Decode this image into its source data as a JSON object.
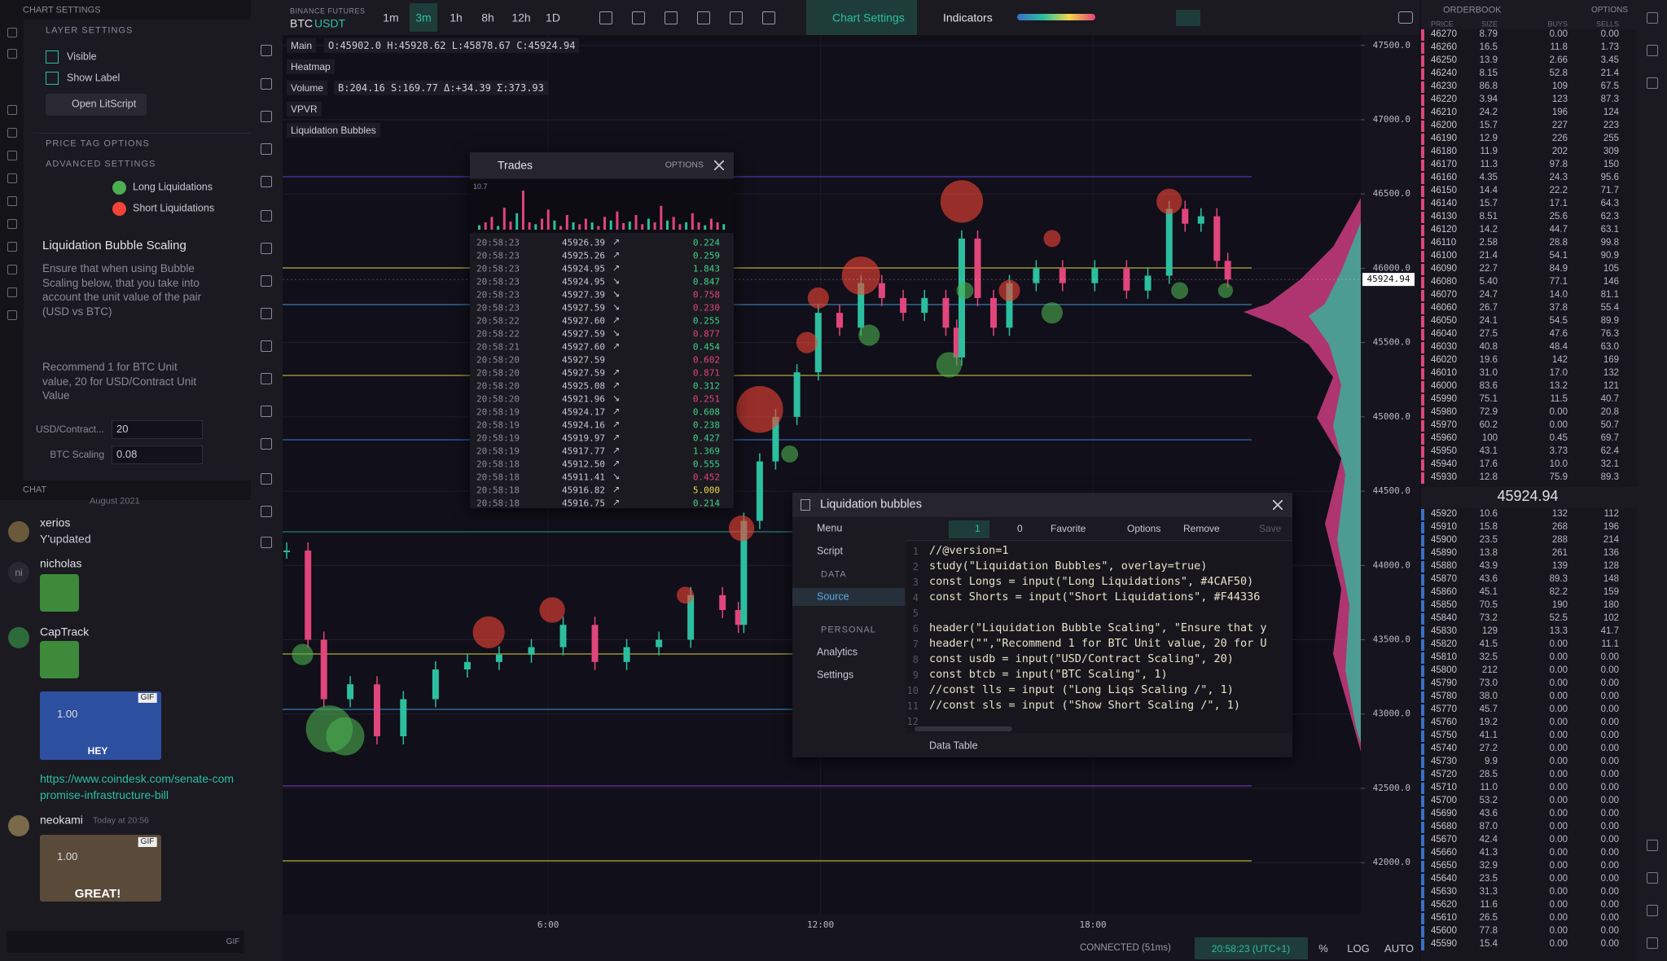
{
  "sidebar": {
    "header": "CHART SETTINGS",
    "layer_settings": "LAYER SETTINGS",
    "visible": "Visible",
    "show_label": "Show Label",
    "open_script": "Open LitScript",
    "price_tag": "PRICE TAG OPTIONS",
    "advanced": "ADVANCED SETTINGS",
    "long": "Long Liquidations",
    "short": "Short Liquidations",
    "scaling_title": "Liquidation Bubble Scaling",
    "scaling_desc": "Ensure that when using Bubble Scaling below, that you take into account the unit value of the pair (USD vs BTC)",
    "recommend": "Recommend 1 for BTC Unit value, 20 for USD/Contract Unit Value",
    "usd_label": "USD/Contract...",
    "usd_value": "20",
    "btc_label": "BTC Scaling",
    "btc_value": "0.08"
  },
  "chat": {
    "header": "CHAT",
    "date": "August 2021",
    "messages": [
      {
        "user": "xerios",
        "text": "Y'updated"
      },
      {
        "user": "nicholas",
        "avatar": "ni"
      },
      {
        "user": "CapTrack",
        "gif_badge": "GIF",
        "gif_counter": "1.00",
        "gif_caption": "HEY",
        "link": "https://www.coindesk.com/senate-compromise-infrastructure-bill"
      },
      {
        "user": "neokami",
        "time": "Today at 20:56",
        "gif_badge": "GIF",
        "gif_counter": "1.00",
        "gif_caption": "GREAT!"
      }
    ],
    "input_gif": "GIF"
  },
  "toolbar": {
    "exchange": "BINANCE FUTURES",
    "symbol_base": "BTC",
    "symbol_quote": "USDT",
    "timeframes": [
      "1m",
      "3m",
      "1h",
      "8h",
      "12h",
      "1D"
    ],
    "chart_settings": "Chart Settings",
    "indicators": "Indicators"
  },
  "legend": {
    "main": "Main",
    "ohlc": "O:45902.0 H:45928.62 L:45878.67 C:45924.94",
    "heatmap": "Heatmap",
    "volume": "Volume",
    "vol_stats": "B:204.16 S:169.77 Δ:+34.39 Σ:373.93",
    "vpvr": "VPVR",
    "bubbles": "Liquidation Bubbles"
  },
  "chart": {
    "xlim": [
      0.15,
      23.9
    ],
    "ylim": [
      41650,
      47570
    ],
    "yticks": [
      {
        "value": 42000,
        "label": "42000.0"
      },
      {
        "value": 42500,
        "label": "42500.0"
      },
      {
        "value": 43000,
        "label": "43000.0"
      },
      {
        "value": 43500,
        "label": "43500.0"
      },
      {
        "value": 44000,
        "label": "44000.0"
      },
      {
        "value": 44500,
        "label": "44500.0"
      },
      {
        "value": 45000,
        "label": "45000.0"
      },
      {
        "value": 45500,
        "label": "45500.0"
      },
      {
        "value": 46000,
        "label": "46000.0"
      },
      {
        "value": 46500,
        "label": "46500.0"
      },
      {
        "value": 47000,
        "label": "47000.0"
      },
      {
        "value": 47500,
        "label": "47500.0"
      }
    ],
    "xticks": [
      {
        "value": 6,
        "label": "6:00"
      },
      {
        "value": 12,
        "label": "12:00"
      },
      {
        "value": 18,
        "label": "18:00"
      }
    ],
    "t": [
      0.24,
      0.71,
      1.06,
      1.64,
      2.23,
      2.81,
      3.52,
      4.22,
      4.92,
      5.63,
      6.33,
      7.03,
      7.73,
      8.44,
      9.14,
      9.84,
      10.19,
      10.31,
      10.66,
      11.01,
      11.48,
      11.95,
      12.42,
      12.89,
      13.35,
      13.82,
      14.29,
      14.76,
      15.0,
      15.11,
      15.46,
      15.81,
      16.16,
      16.75,
      17.33,
      18.04,
      18.74,
      19.21,
      19.68,
      20.03,
      20.38,
      20.73,
      20.97
    ],
    "close": [
      44100,
      43500,
      43100,
      43200,
      42850,
      43100,
      43300,
      43350,
      43400,
      43450,
      43600,
      43350,
      43450,
      43500,
      43800,
      43700,
      43600,
      44300,
      44700,
      45000,
      45300,
      45700,
      45600,
      45900,
      45800,
      45700,
      45800,
      45600,
      45400,
      46200,
      45800,
      45600,
      45900,
      46000,
      45900,
      46000,
      45850,
      45950,
      46400,
      46300,
      46350,
      46050,
      45924.94
    ],
    "up_color": "#2bbf9f",
    "down_color": "#e0457b",
    "bubbles": {
      "long": {
        "color": "#4CAF50",
        "points": [
          [
            1.18,
            42900,
            22
          ],
          [
            1.53,
            42850,
            18
          ],
          [
            0.59,
            43400,
            10
          ],
          [
            14.83,
            45350,
            12
          ],
          [
            17.1,
            45700,
            10
          ],
          [
            13.07,
            45550,
            10
          ],
          [
            19.91,
            45850,
            8
          ],
          [
            20.92,
            45850,
            7
          ],
          [
            11.32,
            44750,
            8
          ],
          [
            15.18,
            45850,
            8
          ]
        ]
      },
      "short": {
        "color": "#F44336",
        "points": [
          [
            15.11,
            46450,
            20
          ],
          [
            10.66,
            45050,
            22
          ],
          [
            4.69,
            43550,
            15
          ],
          [
            6.09,
            43700,
            12
          ],
          [
            9.02,
            43800,
            8
          ],
          [
            12.89,
            45950,
            18
          ],
          [
            11.95,
            45800,
            10
          ],
          [
            19.68,
            46450,
            12
          ],
          [
            16.16,
            45850,
            10
          ],
          [
            17.1,
            46200,
            8
          ],
          [
            10.26,
            44250,
            12
          ],
          [
            11.7,
            45500,
            10
          ]
        ]
      }
    },
    "last_price": 45924.94
  },
  "trades": {
    "title": "Trades",
    "options": "OPTIONS",
    "hist_max": 10.7,
    "hist": [
      1.2,
      2.0,
      3.5,
      1.0,
      6.0,
      2.2,
      4.5,
      10.7,
      2.0,
      1.5,
      3.0,
      5.5,
      2.5,
      1.0,
      4.0,
      2.0,
      1.5,
      3.0,
      2.0,
      1.0,
      3.5,
      2.5,
      5.0,
      1.8,
      2.2,
      4.0,
      1.5,
      3.0,
      2.0,
      6.5,
      2.5,
      3.5,
      1.5,
      2.0,
      4.5,
      2.0,
      1.2,
      3.0,
      2.0,
      1.5
    ],
    "rows": [
      {
        "time": "20:58:23",
        "price": "45926.39",
        "arrow": "↗",
        "size": "0.224",
        "color": "#3fd18a"
      },
      {
        "time": "20:58:23",
        "price": "45925.26",
        "arrow": "↗",
        "size": "0.259",
        "color": "#3fd18a"
      },
      {
        "time": "20:58:23",
        "price": "45924.95",
        "arrow": "↗",
        "size": "1.843",
        "color": "#3fd18a"
      },
      {
        "time": "20:58:23",
        "price": "45924.95",
        "arrow": "↘",
        "size": "0.847",
        "color": "#3fd18a"
      },
      {
        "time": "20:58:23",
        "price": "45927.39",
        "arrow": "↘",
        "size": "0.758",
        "color": "#e0457b"
      },
      {
        "time": "20:58:23",
        "price": "45927.59",
        "arrow": "↘",
        "size": "0.230",
        "color": "#e0457b"
      },
      {
        "time": "20:58:22",
        "price": "45927.60",
        "arrow": "↗",
        "size": "0.255",
        "color": "#3fd18a"
      },
      {
        "time": "20:58:22",
        "price": "45927.59",
        "arrow": "↘",
        "size": "0.877",
        "color": "#e0457b"
      },
      {
        "time": "20:58:21",
        "price": "45927.60",
        "arrow": "↗",
        "size": "0.454",
        "color": "#3fd18a"
      },
      {
        "time": "20:58:20",
        "price": "45927.59",
        "size": "0.602",
        "color": "#e0457b"
      },
      {
        "time": "20:58:20",
        "price": "45927.59",
        "arrow": "↗",
        "size": "0.871",
        "color": "#e0457b"
      },
      {
        "time": "20:58:20",
        "price": "45925.08",
        "arrow": "↗",
        "size": "0.312",
        "color": "#3fd18a"
      },
      {
        "time": "20:58:20",
        "price": "45921.96",
        "arrow": "↘",
        "size": "0.251",
        "color": "#e0457b"
      },
      {
        "time": "20:58:19",
        "price": "45924.17",
        "arrow": "↗",
        "size": "0.608",
        "color": "#3fd18a"
      },
      {
        "time": "20:58:19",
        "price": "45924.16",
        "arrow": "↗",
        "size": "0.238",
        "color": "#3fd18a"
      },
      {
        "time": "20:58:19",
        "price": "45919.97",
        "arrow": "↗",
        "size": "0.427",
        "color": "#3fd18a"
      },
      {
        "time": "20:58:19",
        "price": "45917.77",
        "arrow": "↗",
        "size": "1.369",
        "color": "#3fd18a"
      },
      {
        "time": "20:58:18",
        "price": "45912.50",
        "arrow": "↗",
        "size": "0.555",
        "color": "#3fd18a"
      },
      {
        "time": "20:58:18",
        "price": "45911.41",
        "arrow": "↘",
        "size": "0.452",
        "color": "#e0457b"
      },
      {
        "time": "20:58:18",
        "price": "45916.82",
        "arrow": "↗",
        "size": "5.000",
        "color": "#f2d64b"
      },
      {
        "time": "20:58:18",
        "price": "45916.75",
        "arrow": "↗",
        "size": "0.214",
        "color": "#3fd18a"
      }
    ]
  },
  "script": {
    "title": "Liquidation bubbles",
    "menu": "Menu",
    "likes": "1",
    "dislikes": "0",
    "favorite": "Favorite",
    "options": "Options",
    "remove": "Remove",
    "save": "Save",
    "script": "Script",
    "data_section": "DATA",
    "source": "Source",
    "personal": "PERSONAL",
    "analytics": "Analytics",
    "settings": "Settings",
    "line_numbers": [
      1,
      2,
      3,
      4,
      5,
      6,
      7,
      8,
      9,
      10,
      11,
      12
    ],
    "code": "//@version=1\nstudy(\"Liquidation Bubbles\", overlay=true)\nconst Longs = input(\"Long Liquidations\", #4CAF50)\nconst Shorts = input(\"Short Liquidations\", #F44336\n\nheader(\"Liquidation Bubble Scaling\", \"Ensure that y\nheader(\"\",\"Recommend 1 for BTC Unit value, 20 for U\nconst usdb = input(\"USD/Contract Scaling\", 20)\nconst btcb = input(\"BTC Scaling\", 1)\n//const lls = input (\"Long Liqs Scaling /\", 1)\n//const sls = input (\"Show Short Scaling /\", 1)",
    "data_table": "Data Table"
  },
  "status": {
    "connected": "CONNECTED (51ms)",
    "time": "20:58:23 (UTC+1)",
    "pct": "%",
    "log": "LOG",
    "auto": "AUTO"
  },
  "orderbook": {
    "title": "ORDERBOOK",
    "options": "OPTIONS",
    "columns": [
      "PRICE",
      "SIZE",
      "BUYS",
      "SELLS"
    ],
    "asks": [
      [
        "46270",
        "8.79",
        "0.00",
        "0.00"
      ],
      [
        "46260",
        "16.5",
        "11.8",
        "1.73"
      ],
      [
        "46250",
        "13.9",
        "2.66",
        "3.45"
      ],
      [
        "46240",
        "8.15",
        "52.8",
        "21.4"
      ],
      [
        "46230",
        "86.8",
        "109",
        "67.5"
      ],
      [
        "46220",
        "3.94",
        "123",
        "87.3"
      ],
      [
        "46210",
        "24.2",
        "196",
        "124"
      ],
      [
        "46200",
        "15.7",
        "227",
        "223"
      ],
      [
        "46190",
        "12.9",
        "226",
        "255"
      ],
      [
        "46180",
        "11.9",
        "202",
        "309"
      ],
      [
        "46170",
        "11.3",
        "97.8",
        "150"
      ],
      [
        "46160",
        "4.35",
        "24.3",
        "95.6"
      ],
      [
        "46150",
        "14.4",
        "22.2",
        "71.7"
      ],
      [
        "46140",
        "15.7",
        "17.1",
        "64.3"
      ],
      [
        "46130",
        "8.51",
        "25.6",
        "62.3"
      ],
      [
        "46120",
        "14.2",
        "44.7",
        "63.1"
      ],
      [
        "46110",
        "2.58",
        "28.8",
        "99.8"
      ],
      [
        "46100",
        "21.4",
        "54.1",
        "90.9"
      ],
      [
        "46090",
        "22.7",
        "84.9",
        "105"
      ],
      [
        "46080",
        "5.40",
        "77.1",
        "146"
      ],
      [
        "46070",
        "24.7",
        "14.0",
        "81.1"
      ],
      [
        "46060",
        "26.7",
        "37.8",
        "55.4"
      ],
      [
        "46050",
        "24.1",
        "54.5",
        "89.9"
      ],
      [
        "46040",
        "27.5",
        "47.6",
        "76.3"
      ],
      [
        "46030",
        "40.8",
        "48.4",
        "63.0"
      ],
      [
        "46020",
        "19.6",
        "142",
        "169"
      ],
      [
        "46010",
        "31.0",
        "17.0",
        "132"
      ],
      [
        "46000",
        "83.6",
        "13.2",
        "121"
      ],
      [
        "45990",
        "75.1",
        "11.5",
        "40.7"
      ],
      [
        "45980",
        "72.9",
        "0.00",
        "20.8"
      ],
      [
        "45970",
        "60.2",
        "0.00",
        "50.7"
      ],
      [
        "45960",
        "100",
        "0.45",
        "69.7"
      ],
      [
        "45950",
        "43.1",
        "3.73",
        "62.4"
      ],
      [
        "45940",
        "17.6",
        "10.0",
        "32.1"
      ],
      [
        "45930",
        "12.8",
        "75.9",
        "89.3"
      ]
    ],
    "mid": "45924.94",
    "bids": [
      [
        "45920",
        "10.6",
        "132",
        "112"
      ],
      [
        "45910",
        "15.8",
        "268",
        "196"
      ],
      [
        "45900",
        "23.5",
        "288",
        "214"
      ],
      [
        "45890",
        "13.8",
        "261",
        "136"
      ],
      [
        "45880",
        "43.9",
        "139",
        "128"
      ],
      [
        "45870",
        "43.6",
        "89.3",
        "148"
      ],
      [
        "45860",
        "45.1",
        "82.2",
        "159"
      ],
      [
        "45850",
        "70.5",
        "190",
        "180"
      ],
      [
        "45840",
        "73.2",
        "52.5",
        "102"
      ],
      [
        "45830",
        "129",
        "13.3",
        "41.7"
      ],
      [
        "45820",
        "41.5",
        "0.00",
        "11.1"
      ],
      [
        "45810",
        "32.5",
        "0.00",
        "0.00"
      ],
      [
        "45800",
        "212",
        "0.00",
        "0.00"
      ],
      [
        "45790",
        "73.0",
        "0.00",
        "0.00"
      ],
      [
        "45780",
        "38.0",
        "0.00",
        "0.00"
      ],
      [
        "45770",
        "45.7",
        "0.00",
        "0.00"
      ],
      [
        "45760",
        "19.2",
        "0.00",
        "0.00"
      ],
      [
        "45750",
        "41.1",
        "0.00",
        "0.00"
      ],
      [
        "45740",
        "27.2",
        "0.00",
        "0.00"
      ],
      [
        "45730",
        "9.9",
        "0.00",
        "0.00"
      ],
      [
        "45720",
        "28.5",
        "0.00",
        "0.00"
      ],
      [
        "45710",
        "11.0",
        "0.00",
        "0.00"
      ],
      [
        "45700",
        "53.2",
        "0.00",
        "0.00"
      ],
      [
        "45690",
        "43.6",
        "0.00",
        "0.00"
      ],
      [
        "45680",
        "87.0",
        "0.00",
        "0.00"
      ],
      [
        "45670",
        "42.4",
        "0.00",
        "0.00"
      ],
      [
        "45660",
        "41.3",
        "0.00",
        "0.00"
      ],
      [
        "45650",
        "32.9",
        "0.00",
        "0.00"
      ],
      [
        "45640",
        "23.5",
        "0.00",
        "0.00"
      ],
      [
        "45630",
        "31.3",
        "0.00",
        "0.00"
      ],
      [
        "45620",
        "11.6",
        "0.00",
        "0.00"
      ],
      [
        "45610",
        "26.5",
        "0.00",
        "0.00"
      ],
      [
        "45600",
        "77.8",
        "0.00",
        "0.00"
      ],
      [
        "45590",
        "15.4",
        "0.00",
        "0.00"
      ]
    ]
  }
}
